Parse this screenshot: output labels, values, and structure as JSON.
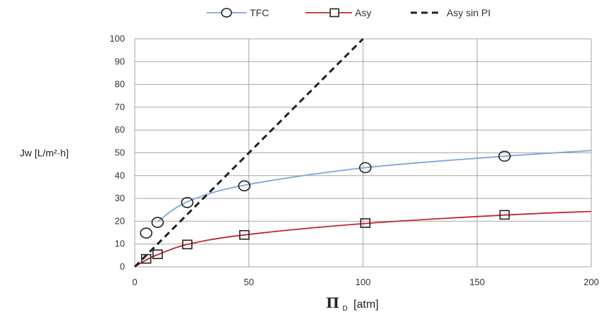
{
  "chart_data": {
    "type": "line",
    "xlabel": "Π",
    "xlabel_sub": "D",
    "xlabel_unit": "[atm]",
    "ylabel": "Jw [L/m²·h]",
    "xlim": [
      0,
      200
    ],
    "ylim": [
      0,
      100
    ],
    "x_ticks": [
      0,
      50,
      100,
      150,
      200
    ],
    "y_ticks": [
      0,
      10,
      20,
      30,
      40,
      50,
      60,
      70,
      80,
      90,
      100
    ],
    "grid": true,
    "legend_position": "top",
    "series": [
      {
        "name": "TFC",
        "color": "#7ea6d8",
        "marker": "circle",
        "points": [
          [
            5,
            14.8
          ],
          [
            10,
            19.5
          ],
          [
            23,
            28.2
          ],
          [
            48,
            35.5
          ],
          [
            101,
            43.5
          ],
          [
            162,
            48.5
          ]
        ],
        "fit": [
          [
            10,
            19.8
          ],
          [
            23,
            28.5
          ],
          [
            48,
            35.8
          ],
          [
            101,
            43.5
          ],
          [
            162,
            48.5
          ],
          [
            200,
            51
          ]
        ]
      },
      {
        "name": "Asy",
        "color": "#c0272d",
        "marker": "square",
        "points": [
          [
            5,
            3.5
          ],
          [
            10,
            5.5
          ],
          [
            23,
            9.8
          ],
          [
            48,
            14.0
          ],
          [
            101,
            19.2
          ],
          [
            162,
            22.8
          ]
        ],
        "fit": [
          [
            0,
            0
          ],
          [
            5,
            3.0
          ],
          [
            10,
            5.3
          ],
          [
            23,
            9.8
          ],
          [
            48,
            14.0
          ],
          [
            101,
            19.0
          ],
          [
            162,
            22.7
          ],
          [
            200,
            24.3
          ]
        ]
      },
      {
        "name": "Asy sin PI",
        "color": "#222222",
        "marker": "none",
        "dashed": true,
        "fit": [
          [
            0,
            0
          ],
          [
            100,
            100
          ]
        ]
      }
    ]
  }
}
